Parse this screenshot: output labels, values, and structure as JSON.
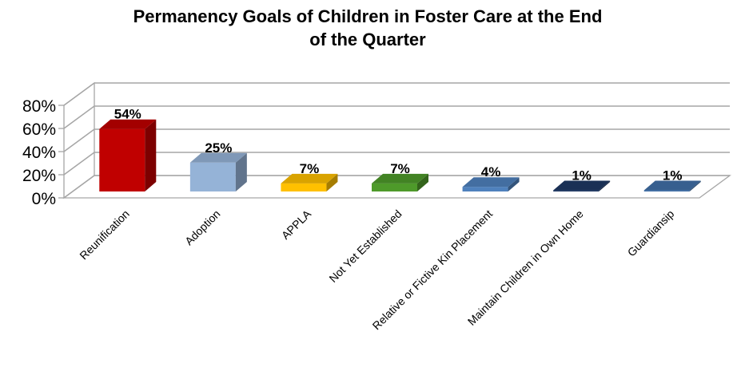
{
  "chart_data": {
    "type": "bar",
    "title_lines": [
      "Permanency Goals of Children in Foster Care at the End",
      "of the Quarter"
    ],
    "categories": [
      "Reunification",
      "Adoption",
      "APPLA",
      "Not Yet Established",
      "Relative or Fictive Kin Placement",
      "Maintain Children in Own Home",
      "Guardiansip"
    ],
    "values": [
      54,
      25,
      7,
      7,
      4,
      1,
      1
    ],
    "data_labels": [
      "54%",
      "25%",
      "7%",
      "7%",
      "4%",
      "1%",
      "1%"
    ],
    "colors": [
      "#C00000",
      "#95B3D7",
      "#FFC000",
      "#4E9A2A",
      "#4F81BD",
      "#1F3864",
      "#4170A8"
    ],
    "ylim": [
      0,
      80
    ],
    "yticks": [
      0,
      20,
      40,
      60,
      80
    ],
    "ytick_labels": [
      "0%",
      "20%",
      "40%",
      "60%",
      "80%"
    ],
    "grid": true,
    "legend": "none",
    "style": "3d-bar"
  }
}
